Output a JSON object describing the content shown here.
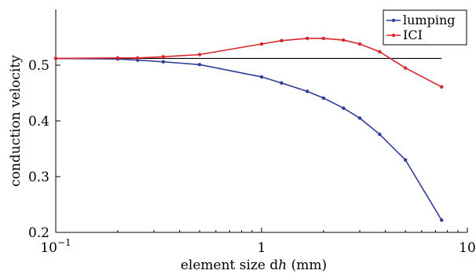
{
  "chart_data": {
    "type": "line",
    "xlabel": "element size dh (mm)",
    "ylabel": "conduction velocity",
    "x_scale": "log",
    "xlim": [
      0.1,
      10
    ],
    "ylim": [
      0.2,
      0.6
    ],
    "x_ticks": [
      {
        "value": 0.1,
        "base": "10",
        "exp": "−1"
      },
      {
        "value": 1,
        "base": "1",
        "exp": ""
      },
      {
        "value": 10,
        "base": "10",
        "exp": ""
      }
    ],
    "y_ticks": [
      0.2,
      0.3,
      0.4,
      0.5
    ],
    "y_tick_labels": [
      "0.2",
      "0.3",
      "0.4",
      "0.5"
    ],
    "reference_line": {
      "y": 0.512,
      "x_from": 0.1,
      "x_to": 7.5,
      "color": "#000000"
    },
    "legend_position": "top-right",
    "grid": false,
    "series": [
      {
        "name": "lumping",
        "color": "#2e3d99",
        "x": [
          0.1,
          0.2,
          0.25,
          0.333,
          0.5,
          1.0,
          1.25,
          1.667,
          2.0,
          2.5,
          3.0,
          3.75,
          5.0,
          7.5
        ],
        "values": [
          0.512,
          0.511,
          0.509,
          0.506,
          0.501,
          0.479,
          0.468,
          0.453,
          0.441,
          0.423,
          0.405,
          0.376,
          0.33,
          0.222
        ]
      },
      {
        "name": "ICI",
        "color": "#d9252b",
        "x": [
          0.1,
          0.2,
          0.25,
          0.333,
          0.5,
          1.0,
          1.25,
          1.667,
          2.0,
          2.5,
          3.0,
          3.75,
          5.0,
          7.5
        ],
        "values": [
          0.512,
          0.513,
          0.513,
          0.515,
          0.519,
          0.538,
          0.544,
          0.548,
          0.548,
          0.545,
          0.538,
          0.524,
          0.495,
          0.461
        ]
      }
    ]
  }
}
